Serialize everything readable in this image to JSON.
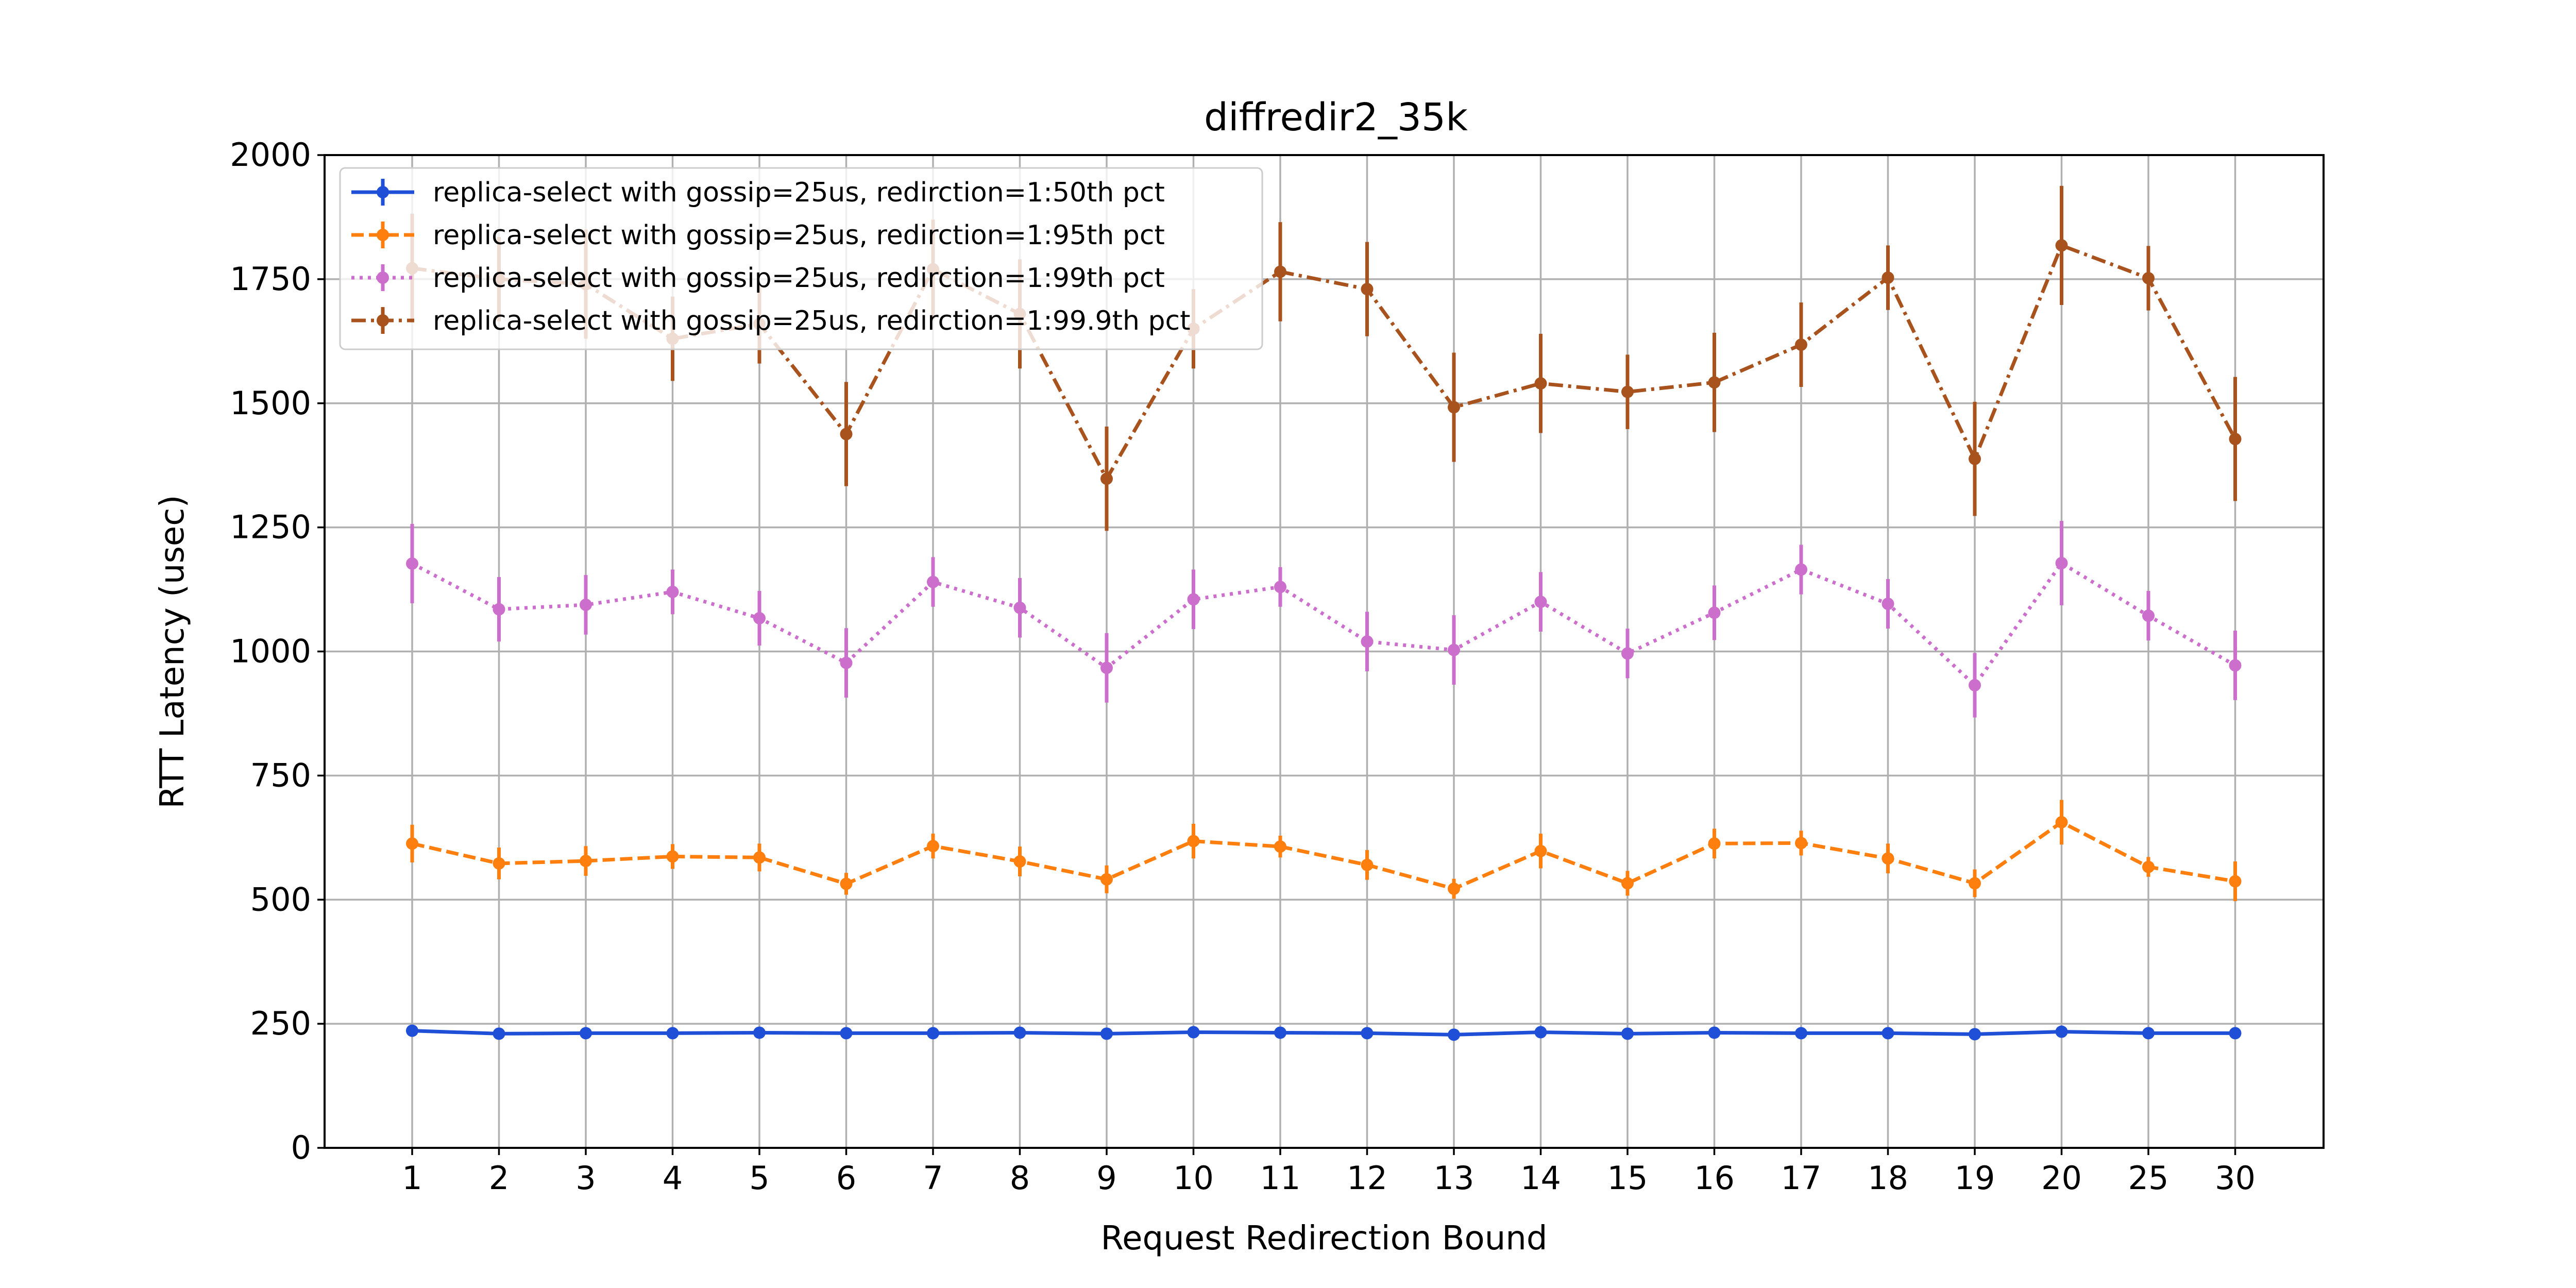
{
  "chart_data": {
    "type": "line",
    "title": "diffredir2_35k",
    "xlabel": "Request Redirection Bound",
    "ylabel": "RTT Latency (usec)",
    "categories": [
      "1",
      "2",
      "3",
      "4",
      "5",
      "6",
      "7",
      "8",
      "9",
      "10",
      "11",
      "12",
      "13",
      "14",
      "15",
      "16",
      "17",
      "18",
      "19",
      "20",
      "25",
      "30"
    ],
    "ylim": [
      0,
      2000
    ],
    "yticks": [
      0,
      250,
      500,
      750,
      1000,
      1250,
      1500,
      1750,
      2000
    ],
    "grid": true,
    "legend_position": "upper-left",
    "series": [
      {
        "name": "replica-select with gossip=25us, redirction=1:50th pct",
        "color": "#1f4fd6",
        "line_style": "solid",
        "values": [
          236,
          230,
          231,
          231,
          232,
          231,
          231,
          232,
          230,
          233,
          232,
          231,
          228,
          233,
          230,
          232,
          231,
          231,
          229,
          234,
          231,
          231
        ],
        "errors": [
          5,
          5,
          5,
          5,
          5,
          5,
          5,
          5,
          5,
          5,
          5,
          5,
          5,
          5,
          5,
          5,
          5,
          5,
          5,
          5,
          5,
          5
        ]
      },
      {
        "name": "replica-select with gossip=25us, redirction=1:95th pct",
        "color": "#ff7f0e",
        "line_style": "dashed",
        "values": [
          613,
          573,
          578,
          587,
          585,
          532,
          608,
          577,
          541,
          618,
          607,
          570,
          522,
          598,
          533,
          613,
          614,
          583,
          533,
          656,
          566,
          537
        ],
        "errors": [
          38,
          32,
          30,
          25,
          28,
          22,
          25,
          30,
          28,
          35,
          22,
          30,
          20,
          35,
          25,
          30,
          25,
          30,
          28,
          45,
          20,
          40
        ]
      },
      {
        "name": "replica-select with gossip=25us, redirction=1:99th pct",
        "color": "#cc6fcc",
        "line_style": "dotted",
        "values": [
          1177,
          1085,
          1094,
          1120,
          1067,
          977,
          1140,
          1088,
          967,
          1105,
          1130,
          1020,
          1003,
          1100,
          996,
          1078,
          1165,
          1096,
          932,
          1178,
          1072,
          972
        ],
        "errors": [
          80,
          65,
          60,
          45,
          55,
          70,
          50,
          60,
          70,
          60,
          40,
          60,
          70,
          60,
          50,
          55,
          50,
          50,
          65,
          85,
          50,
          70
        ]
      },
      {
        "name": "replica-select with gossip=25us, redirction=1:99.9th pct",
        "color": "#a8521e",
        "line_style": "dashdot",
        "values": [
          1772,
          1750,
          1740,
          1630,
          1660,
          1438,
          1770,
          1680,
          1348,
          1650,
          1765,
          1730,
          1492,
          1540,
          1523,
          1542,
          1618,
          1753,
          1388,
          1818,
          1752,
          1428
        ],
        "errors": [
          110,
          85,
          110,
          85,
          80,
          105,
          100,
          110,
          105,
          80,
          100,
          95,
          110,
          100,
          75,
          100,
          85,
          65,
          115,
          120,
          65,
          125
        ]
      }
    ]
  }
}
